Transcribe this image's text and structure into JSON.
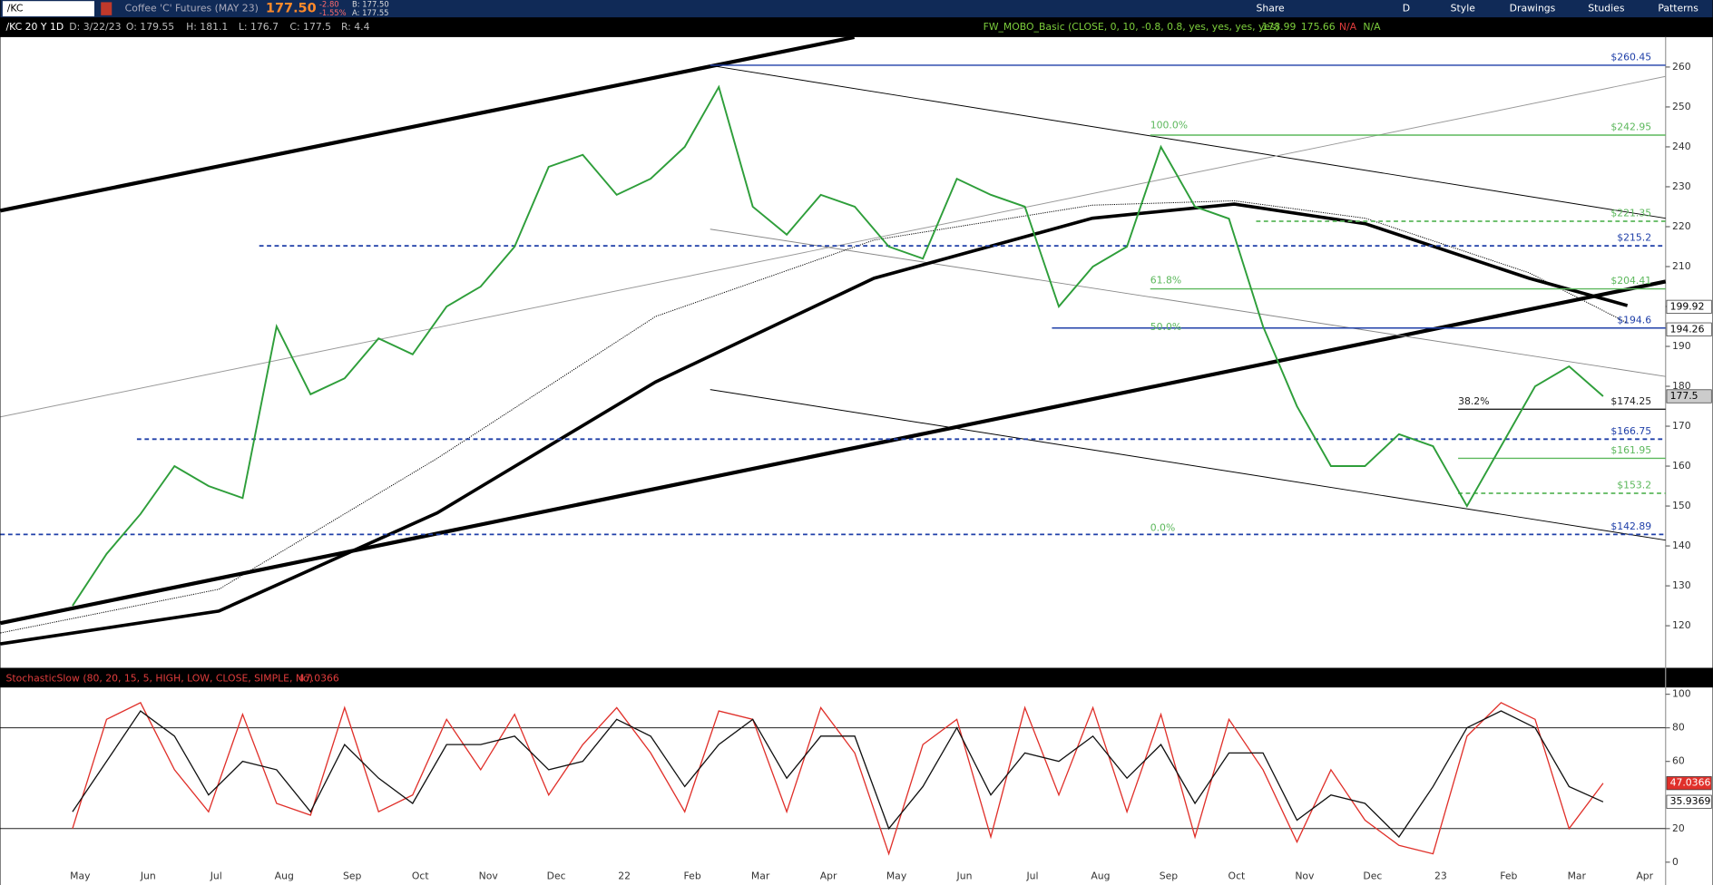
{
  "toolbar": {
    "symbol": "/KC",
    "description": "Coffee 'C' Futures (MAY 23)",
    "last": "177.50",
    "change": "-2.80",
    "change_pct": "-1.55%",
    "bid": "B: 177.50",
    "ask": "A: 177.55",
    "buttons": [
      "Share",
      "D",
      "Style",
      "Drawings",
      "Studies",
      "Patterns"
    ]
  },
  "info_bar": {
    "chart": "/KC 20 Y 1D",
    "date": "D: 3/22/23",
    "open": "O: 179.55",
    "high": "H: 181.1",
    "low": "L: 176.7",
    "close": "C: 177.5",
    "range": "R: 4.4",
    "study": "FW_MOBO_Basic (CLOSE, 0, 10, -0.8, 0.8, yes, yes, yes, yes)",
    "study_values": [
      "178.99",
      "175.66",
      "N/A",
      "N/A"
    ]
  },
  "chart_data": [
    {
      "type": "line",
      "color": "#2e9e3a",
      "values": [
        125,
        138,
        148,
        160,
        155,
        152,
        195,
        178,
        182,
        192,
        188,
        200,
        205,
        215,
        235,
        238,
        228,
        232,
        240,
        255,
        225,
        218,
        228,
        225,
        215,
        212,
        232,
        228,
        225,
        200,
        210,
        215,
        240,
        225,
        222,
        195,
        175,
        160,
        160,
        168,
        165,
        150,
        165,
        180,
        185,
        177.5,
        null,
        null
      ],
      "ylim": [
        110,
        267.5
      ],
      "yticks": [
        120,
        130,
        140,
        150,
        160,
        170,
        180,
        190,
        200,
        210,
        220,
        230,
        240,
        250,
        260
      ],
      "levels": [
        {
          "value": 260.45,
          "label": "$260.45",
          "color": "#1f3fa8",
          "dashed": false
        },
        {
          "value": 242.95,
          "label": "$242.95",
          "color": "#5cb85c",
          "dashed": false
        },
        {
          "value": 221.35,
          "label": "$221.35",
          "color": "#5cb85c",
          "dashed": true
        },
        {
          "value": 215.2,
          "label": "$215.2",
          "color": "#1f3fa8",
          "dashed": true
        },
        {
          "value": 204.41,
          "label": "$204.41",
          "color": "#5cb85c",
          "dashed": false
        },
        {
          "value": 194.6,
          "label": "$194.6",
          "color": "#1f3fa8",
          "dashed": false
        },
        {
          "value": 174.25,
          "label": "$174.25",
          "color": "#222222",
          "dashed": false
        },
        {
          "value": 166.75,
          "label": "$166.75",
          "color": "#1f3fa8",
          "dashed": true
        },
        {
          "value": 161.95,
          "label": "$161.95",
          "color": "#5cb85c",
          "dashed": false
        },
        {
          "value": 153.2,
          "label": "$153.2",
          "color": "#5cb85c",
          "dashed": true
        },
        {
          "value": 142.89,
          "label": "$142.89",
          "color": "#1f3fa8",
          "dashed": true
        }
      ],
      "fib_labels": [
        "100.0%",
        "61.8%",
        "50.0%",
        "38.2%",
        "0.0%"
      ],
      "price_markers": [
        199.92,
        194.26,
        177.5
      ]
    },
    {
      "type": "line",
      "title": "StochasticSlow (80, 20, 15, 5, HIGH, LOW, CLOSE, SIMPLE, No)",
      "title_value": 47.0366,
      "categories": [
        "May",
        null,
        "Jun",
        null,
        "Jul",
        null,
        "Aug",
        null,
        "Sep",
        null,
        "Oct",
        null,
        "Nov",
        null,
        "Dec",
        null,
        "22",
        null,
        "Feb",
        null,
        "Mar",
        null,
        "Apr",
        null,
        "May",
        null,
        "Jun",
        null,
        "Jul",
        null,
        "Aug",
        null,
        "Sep",
        null,
        "Oct",
        null,
        "Nov",
        null,
        "Dec",
        null,
        "23",
        null,
        "Feb",
        null,
        "Mar",
        null,
        "Apr",
        null
      ],
      "series": [
        {
          "color": "#e0302a",
          "values": [
            20,
            85,
            95,
            55,
            30,
            88,
            35,
            28,
            92,
            30,
            40,
            85,
            55,
            88,
            40,
            70,
            92,
            65,
            30,
            90,
            85,
            30,
            92,
            65,
            5,
            70,
            85,
            15,
            92,
            40,
            92,
            30,
            88,
            15,
            85,
            55,
            12,
            55,
            25,
            10,
            5,
            75,
            95,
            85,
            20,
            47.0366,
            null,
            null
          ]
        },
        {
          "color": "#111111",
          "values": [
            30,
            60,
            90,
            75,
            40,
            60,
            55,
            30,
            70,
            50,
            35,
            70,
            70,
            75,
            55,
            60,
            85,
            75,
            45,
            70,
            85,
            50,
            75,
            75,
            20,
            45,
            80,
            40,
            65,
            60,
            75,
            50,
            70,
            35,
            65,
            65,
            25,
            40,
            35,
            15,
            45,
            80,
            90,
            80,
            45,
            35.9369,
            null,
            null
          ]
        }
      ],
      "ylim": [
        -4.5,
        104
      ],
      "yticks": [
        0,
        20,
        60,
        80,
        100
      ],
      "levels": [
        20,
        80
      ],
      "last_values": [
        47.0366,
        35.9369
      ]
    }
  ]
}
